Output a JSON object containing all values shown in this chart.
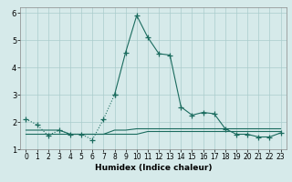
{
  "title": "",
  "xlabel": "Humidex (Indice chaleur)",
  "ylabel": "",
  "background_color": "#d6eaea",
  "line_color": "#1a6b5e",
  "x_main": [
    0,
    1,
    2,
    3,
    4,
    5,
    6,
    7,
    8,
    9,
    10,
    11,
    12,
    13,
    14,
    15,
    16,
    17,
    18,
    19,
    20,
    21,
    22,
    23
  ],
  "y_main": [
    2.1,
    1.9,
    1.5,
    1.7,
    1.55,
    1.55,
    1.35,
    2.1,
    3.0,
    4.55,
    5.9,
    5.1,
    4.5,
    4.45,
    2.55,
    2.25,
    2.35,
    2.3,
    1.75,
    1.55,
    1.55,
    1.45,
    1.45,
    1.6
  ],
  "x_line1": [
    0,
    1,
    2,
    3,
    4,
    5,
    6,
    7,
    8,
    9,
    10,
    11,
    12,
    13,
    14,
    15,
    16,
    17,
    18,
    19,
    20,
    21,
    22,
    23
  ],
  "y_line1": [
    1.55,
    1.55,
    1.55,
    1.55,
    1.55,
    1.55,
    1.55,
    1.55,
    1.55,
    1.55,
    1.55,
    1.65,
    1.65,
    1.65,
    1.65,
    1.65,
    1.65,
    1.65,
    1.65,
    1.65,
    1.65,
    1.65,
    1.65,
    1.65
  ],
  "x_line2": [
    0,
    1,
    2,
    3,
    4,
    5,
    6,
    7,
    8,
    9,
    10,
    11,
    12,
    13,
    14,
    15,
    16,
    17,
    18,
    19,
    20,
    21,
    22,
    23
  ],
  "y_line2": [
    1.7,
    1.7,
    1.7,
    1.7,
    1.55,
    1.55,
    1.55,
    1.55,
    1.7,
    1.7,
    1.75,
    1.75,
    1.75,
    1.75,
    1.75,
    1.75,
    1.75,
    1.75,
    1.75,
    1.75,
    1.75,
    1.75,
    1.75,
    1.75
  ],
  "ylim": [
    1.0,
    6.2
  ],
  "xlim": [
    -0.5,
    23.5
  ],
  "yticks": [
    1,
    2,
    3,
    4,
    5,
    6
  ],
  "xticks": [
    0,
    1,
    2,
    3,
    4,
    5,
    6,
    7,
    8,
    9,
    10,
    11,
    12,
    13,
    14,
    15,
    16,
    17,
    18,
    19,
    20,
    21,
    22,
    23
  ],
  "grid_color": "#aacccc",
  "marker": "+",
  "markersize": 4,
  "linewidth": 0.8,
  "dot_end": 8,
  "xlabel_fontsize": 6.5,
  "tick_fontsize": 5.5
}
